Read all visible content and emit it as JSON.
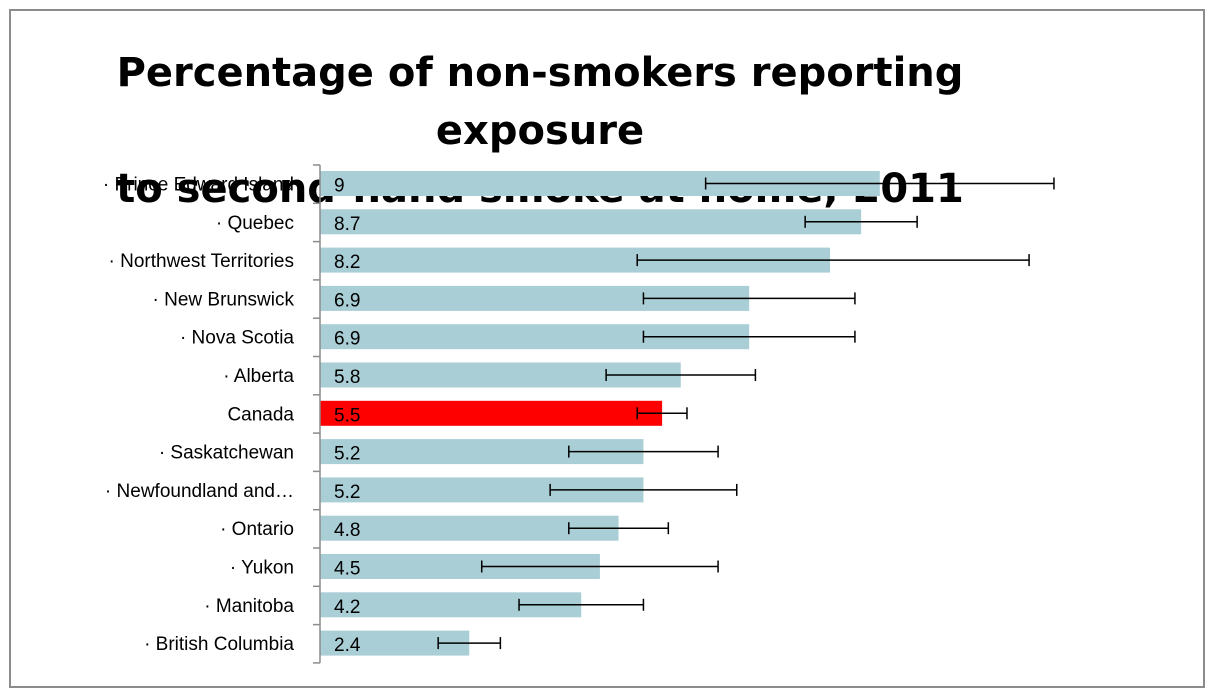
{
  "chart_data": {
    "type": "bar",
    "orientation": "horizontal",
    "title_lines": [
      "Percentage of non-smokers reporting exposure",
      "to second-hand smoke at home, 2011"
    ],
    "categories": [
      "· Prince Edward Island",
      "· Quebec",
      "· Northwest Territories",
      "· New Brunswick",
      "· Nova Scotia",
      "· Alberta",
      "Canada",
      "· Saskatchewan",
      "· Newfoundland and…",
      "· Ontario",
      "· Yukon",
      "· Manitoba",
      "· British Columbia"
    ],
    "values": [
      9,
      8.7,
      8.2,
      6.9,
      6.9,
      5.8,
      5.5,
      5.2,
      5.2,
      4.8,
      4.5,
      4.2,
      2.4
    ],
    "value_labels": [
      "9",
      "8.7",
      "8.2",
      "6.9",
      "6.9",
      "5.8",
      "5.5",
      "5.2",
      "5.2",
      "4.8",
      "4.5",
      "4.2",
      "2.4"
    ],
    "error_low": [
      6.2,
      7.8,
      5.1,
      5.2,
      5.2,
      4.6,
      5.1,
      4.0,
      3.7,
      4.0,
      2.6,
      3.2,
      1.9
    ],
    "error_high": [
      11.8,
      9.6,
      11.4,
      8.6,
      8.6,
      7.0,
      5.9,
      6.4,
      6.7,
      5.6,
      6.4,
      5.2,
      2.9
    ],
    "highlight_index": 6,
    "colors": {
      "bar": "#a9ced6",
      "highlight": "#ff0000",
      "error_bar": "#000000",
      "axis": "#8c8c8c"
    },
    "xlim": [
      0,
      12.5
    ],
    "grid": false,
    "legend": "none"
  }
}
